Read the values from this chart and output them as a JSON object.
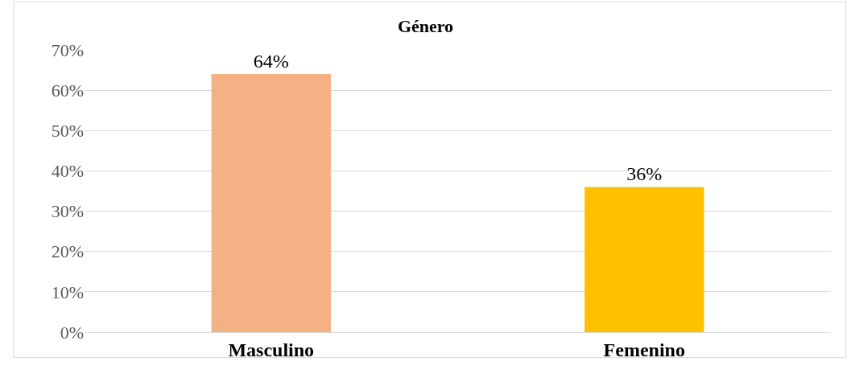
{
  "chart_data": {
    "type": "bar",
    "title": "Género",
    "categories": [
      "Masculino",
      "Femenino"
    ],
    "values": [
      64,
      36
    ],
    "colors": [
      "#f4b183",
      "#ffc000"
    ],
    "value_labels": [
      "64%",
      "36%"
    ],
    "ylim": [
      0,
      70
    ],
    "yticks": [
      {
        "value": 0,
        "label": "0%"
      },
      {
        "value": 10,
        "label": "10%"
      },
      {
        "value": 20,
        "label": "20%"
      },
      {
        "value": 30,
        "label": "30%"
      },
      {
        "value": 40,
        "label": "40%"
      },
      {
        "value": 50,
        "label": "50%"
      },
      {
        "value": 60,
        "label": "60%"
      },
      {
        "value": 70,
        "label": "70%"
      }
    ],
    "grid": "y"
  }
}
